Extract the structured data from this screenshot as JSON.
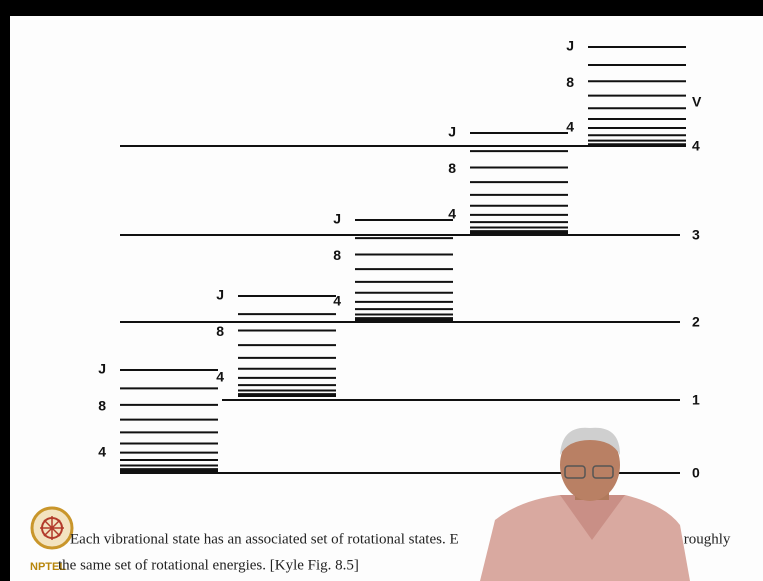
{
  "ladders": [
    {
      "labels": [
        "J",
        "8",
        "4"
      ]
    },
    {
      "labels": [
        "J",
        "8",
        "4"
      ]
    },
    {
      "labels": [
        "J",
        "8",
        "4"
      ]
    },
    {
      "labels": [
        "J",
        "8",
        "4"
      ]
    },
    {
      "labels": [
        "J",
        "8",
        "4"
      ]
    }
  ],
  "levels": [
    "0",
    "1",
    "2",
    "3",
    "4"
  ],
  "level_axis": "V",
  "caption": [
    "Each vibrational state has an associated set of rotational states. E",
    "has roughly",
    "the same set of rotational energies. [Kyle Fig. 8.5]"
  ],
  "logo": "NPTEL"
}
